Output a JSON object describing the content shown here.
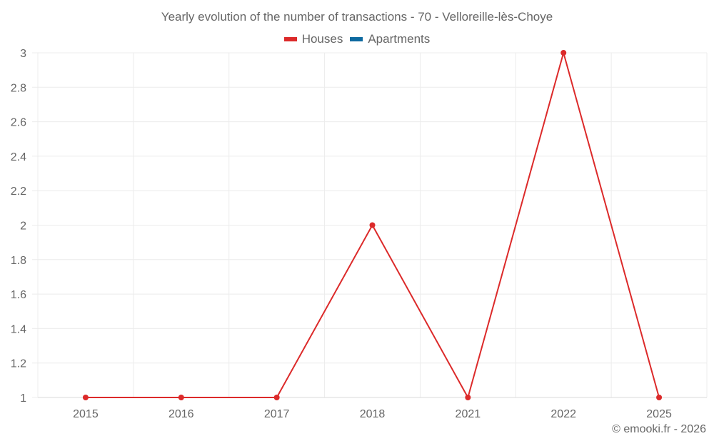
{
  "chart_data": {
    "type": "line",
    "title": "Yearly evolution of the number of transactions - 70 - Velloreille-lès-Choye",
    "categories": [
      "2015",
      "2016",
      "2017",
      "2018",
      "2021",
      "2022",
      "2025"
    ],
    "series": [
      {
        "name": "Houses",
        "color": "#dc2a2a",
        "values": [
          1,
          1,
          1,
          2,
          1,
          3,
          1
        ]
      },
      {
        "name": "Apartments",
        "color": "#0e6aa0",
        "values": []
      }
    ],
    "xlabel": "",
    "ylabel": "",
    "ylim": [
      1,
      3
    ],
    "yticks": [
      "1",
      "1.2",
      "1.4",
      "1.6",
      "1.8",
      "2",
      "2.2",
      "2.4",
      "2.6",
      "2.8",
      "3"
    ],
    "grid": true,
    "legend_position": "top"
  },
  "header": {
    "title": "Yearly evolution of the number of transactions - 70 - Velloreille-lès-Choye"
  },
  "legend": {
    "items": [
      {
        "label": "Houses",
        "color": "#dc2a2a"
      },
      {
        "label": "Apartments",
        "color": "#0e6aa0"
      }
    ]
  },
  "footer": {
    "credit": "© emooki.fr - 2026"
  }
}
